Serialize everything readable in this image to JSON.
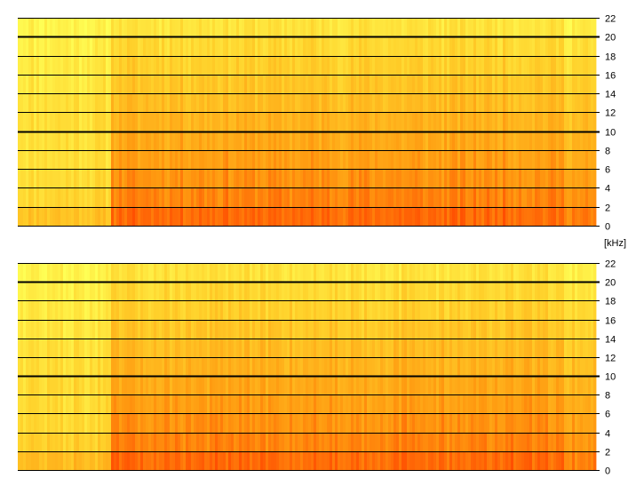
{
  "chart_data": [
    {
      "type": "heatmap",
      "subtype": "spectrogram",
      "channel": "top",
      "y_unit": "[kHz]",
      "ylim": [
        0,
        22
      ],
      "y_ticks": [
        0,
        2,
        4,
        6,
        8,
        10,
        12,
        14,
        16,
        18,
        20,
        22
      ],
      "y_tick_labels": [
        "0",
        "2",
        "4",
        "6",
        "8",
        "10",
        "12",
        "14",
        "16",
        "18",
        "20",
        "22"
      ],
      "major_lines_khz": [
        10,
        20
      ],
      "grid": true,
      "tick_side": "right",
      "colormap": [
        "#ffff55",
        "#ffd02a",
        "#ff9a10",
        "#ff4800"
      ],
      "bands_khz": [
        {
          "from": 0,
          "to": 2,
          "left_level": 0.42,
          "right_level": 0.86
        },
        {
          "from": 2,
          "to": 4,
          "left_level": 0.3,
          "right_level": 0.76
        },
        {
          "from": 4,
          "to": 6,
          "left_level": 0.26,
          "right_level": 0.7
        },
        {
          "from": 6,
          "to": 8,
          "left_level": 0.24,
          "right_level": 0.64
        },
        {
          "from": 8,
          "to": 10,
          "left_level": 0.24,
          "right_level": 0.58
        },
        {
          "from": 10,
          "to": 12,
          "left_level": 0.24,
          "right_level": 0.52
        },
        {
          "from": 12,
          "to": 14,
          "left_level": 0.22,
          "right_level": 0.46
        },
        {
          "from": 14,
          "to": 16,
          "left_level": 0.18,
          "right_level": 0.4
        },
        {
          "from": 16,
          "to": 18,
          "left_level": 0.16,
          "right_level": 0.34
        },
        {
          "from": 18,
          "to": 20,
          "left_level": 0.12,
          "right_level": 0.28
        },
        {
          "from": 20,
          "to": 22,
          "left_level": 0.08,
          "right_level": 0.2
        }
      ],
      "onset_fraction": 0.16
    },
    {
      "type": "heatmap",
      "subtype": "spectrogram",
      "channel": "bottom",
      "ylim": [
        0,
        22
      ],
      "y_ticks": [
        0,
        2,
        4,
        6,
        8,
        10,
        12,
        14,
        16,
        18,
        20,
        22
      ],
      "y_tick_labels": [
        "0",
        "2",
        "4",
        "6",
        "8",
        "10",
        "12",
        "14",
        "16",
        "18",
        "20",
        "22"
      ],
      "major_lines_khz": [
        10,
        20
      ],
      "grid": true,
      "tick_side": "right",
      "colormap": [
        "#ffff55",
        "#ffd02a",
        "#ff9a10",
        "#ff4800"
      ],
      "bands_khz": [
        {
          "from": 0,
          "to": 2,
          "left_level": 0.46,
          "right_level": 0.86
        },
        {
          "from": 2,
          "to": 4,
          "left_level": 0.34,
          "right_level": 0.76
        },
        {
          "from": 4,
          "to": 6,
          "left_level": 0.28,
          "right_level": 0.7
        },
        {
          "from": 6,
          "to": 8,
          "left_level": 0.26,
          "right_level": 0.64
        },
        {
          "from": 8,
          "to": 10,
          "left_level": 0.26,
          "right_level": 0.58
        },
        {
          "from": 10,
          "to": 12,
          "left_level": 0.24,
          "right_level": 0.52
        },
        {
          "from": 12,
          "to": 14,
          "left_level": 0.22,
          "right_level": 0.46
        },
        {
          "from": 14,
          "to": 16,
          "left_level": 0.18,
          "right_level": 0.4
        },
        {
          "from": 16,
          "to": 18,
          "left_level": 0.16,
          "right_level": 0.34
        },
        {
          "from": 18,
          "to": 20,
          "left_level": 0.12,
          "right_level": 0.28
        },
        {
          "from": 20,
          "to": 22,
          "left_level": 0.08,
          "right_level": 0.2
        }
      ],
      "onset_fraction": 0.16
    }
  ]
}
